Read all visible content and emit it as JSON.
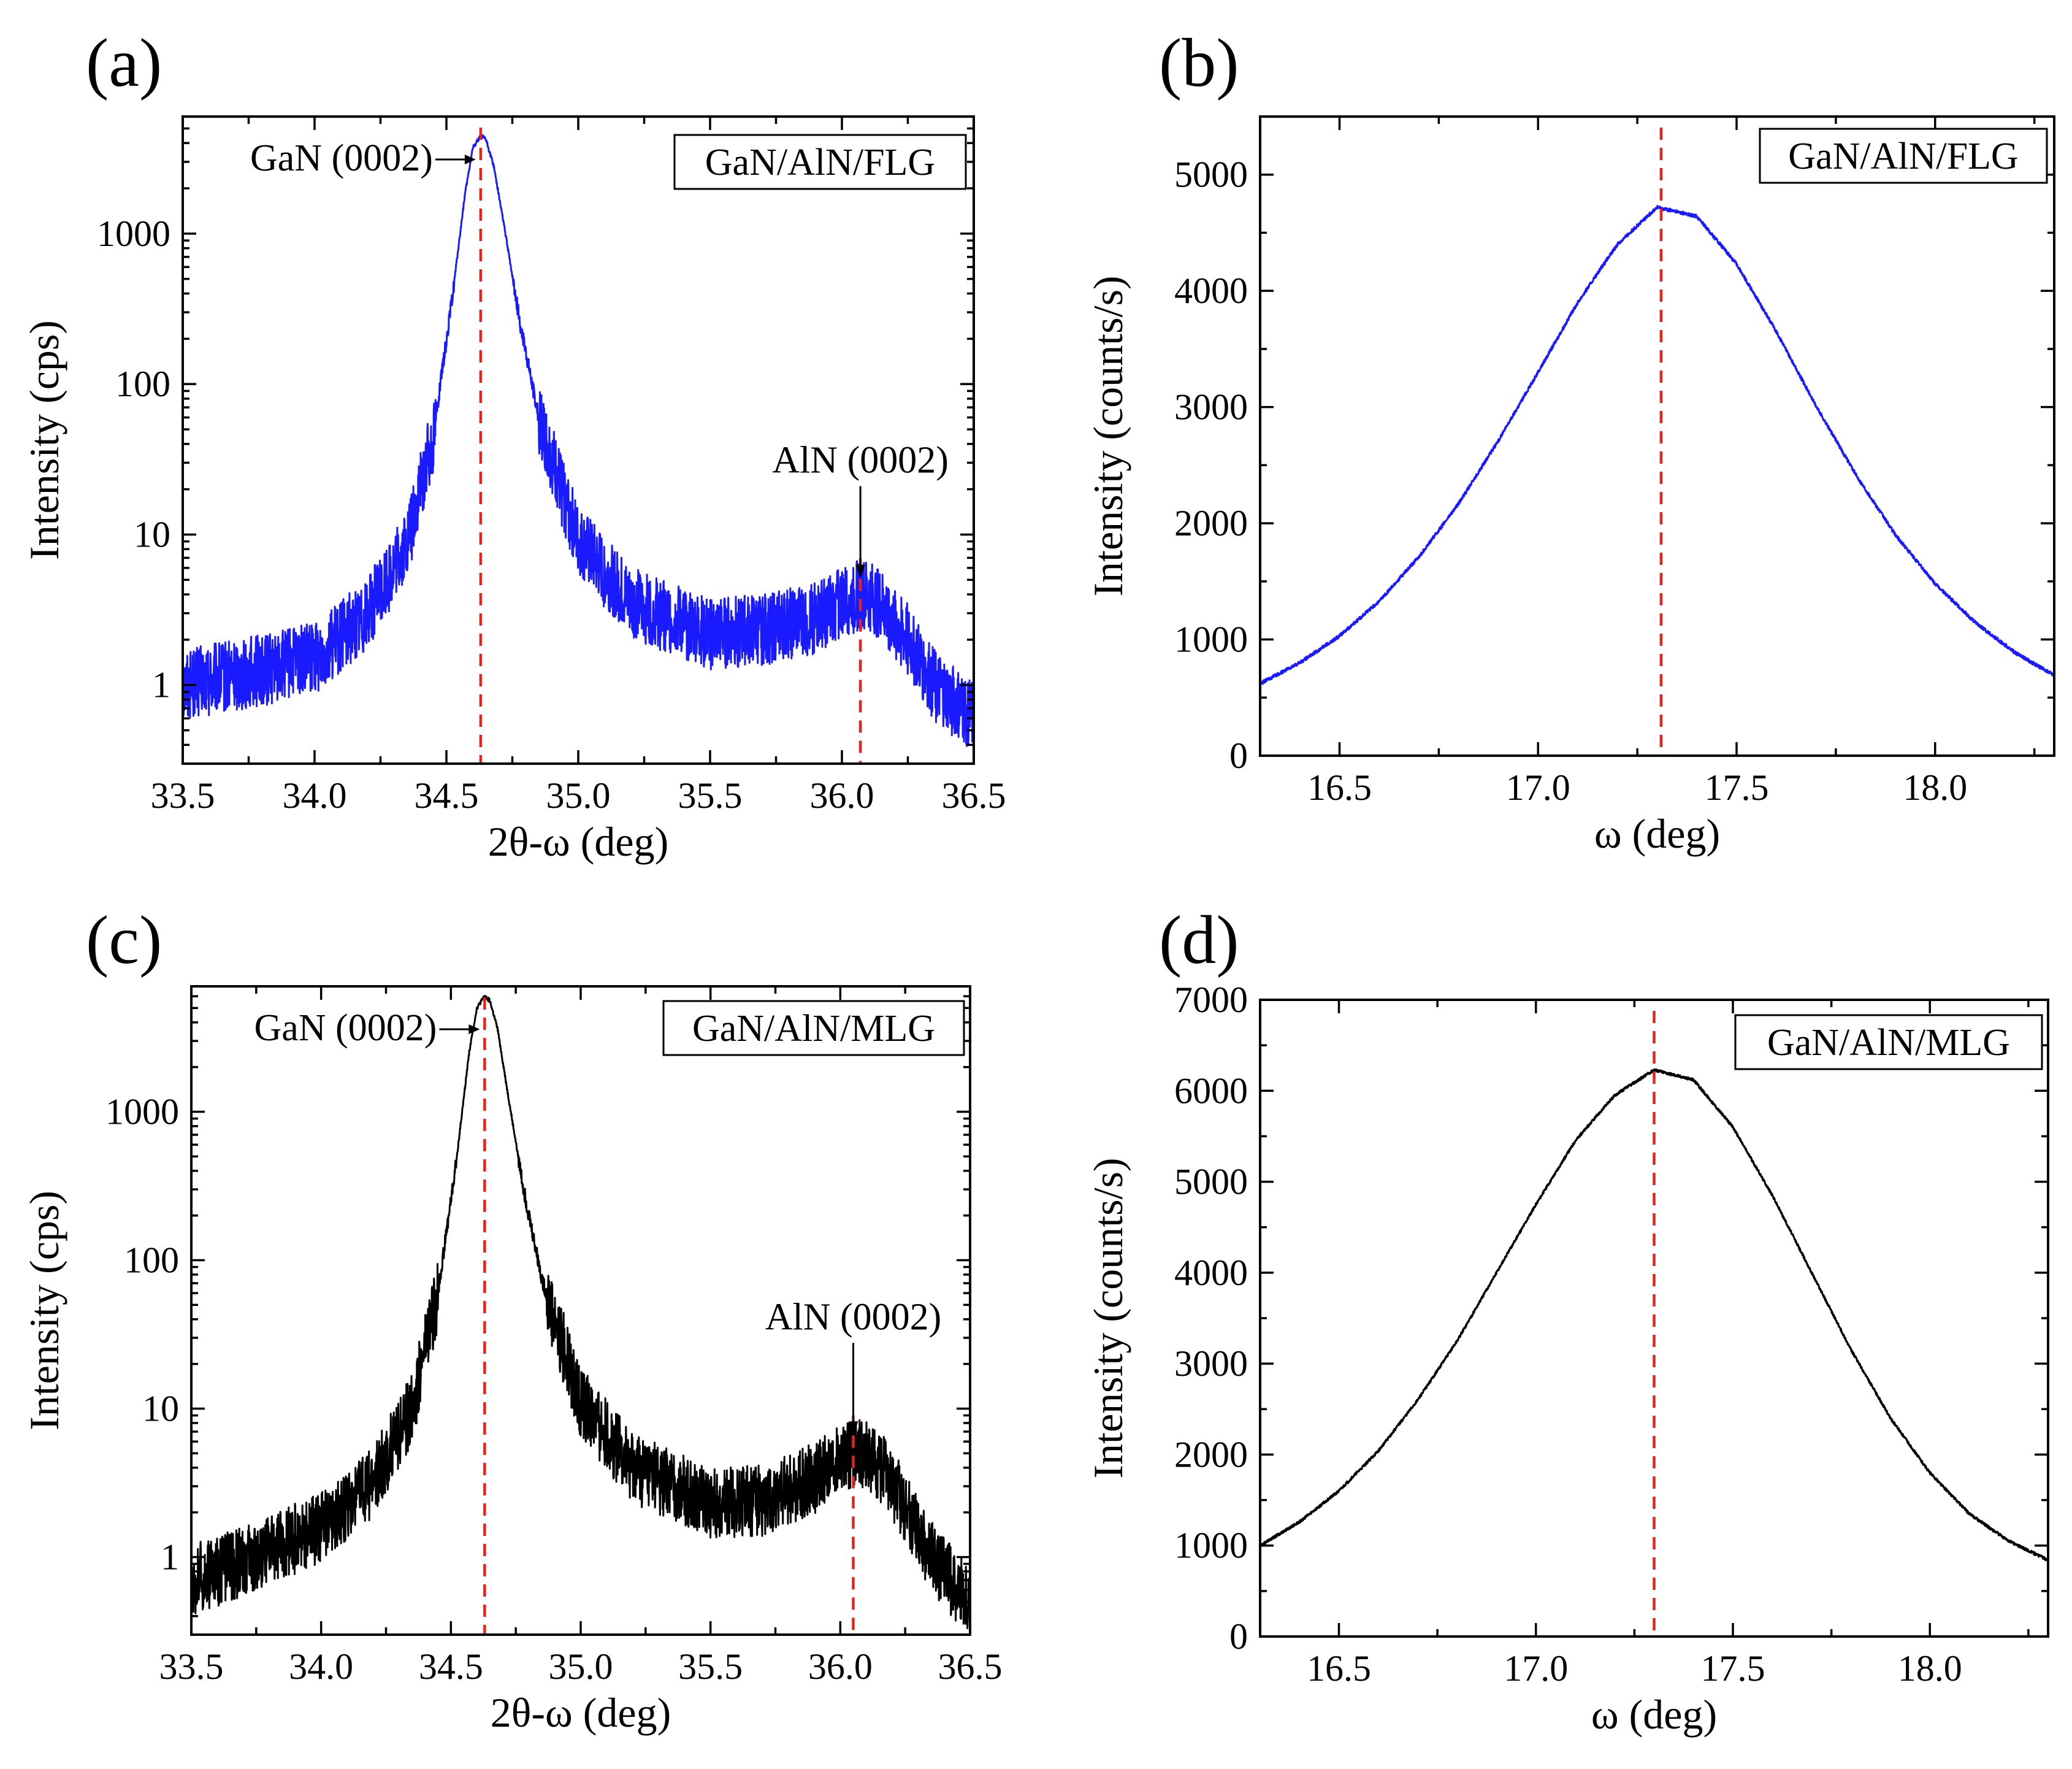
{
  "chart_data": [
    {
      "id": "a",
      "panel_label": "(a)",
      "type": "line",
      "legend": "GaN/AlN/FLG",
      "xlabel": "2θ-ω (deg)",
      "ylabel": "Intensity (cps)",
      "xlim": [
        33.5,
        36.5
      ],
      "ylim": [
        0.3,
        6000
      ],
      "yscale": "log",
      "xticks": [
        33.5,
        34.0,
        34.5,
        35.0,
        35.5,
        36.0,
        36.5
      ],
      "xtick_labels": [
        "33.5",
        "34.0",
        "34.5",
        "35.0",
        "35.5",
        "36.0",
        "36.5"
      ],
      "yticks": [
        1,
        10,
        100,
        1000
      ],
      "ytick_labels": [
        "1",
        "10",
        "100",
        "1000"
      ],
      "grid": false,
      "series": [
        {
          "color": "#1a1aff",
          "x": [
            33.5,
            33.75,
            34.0,
            34.2,
            34.35,
            34.45,
            34.52,
            34.57,
            34.6,
            34.63,
            34.65,
            34.68,
            34.72,
            34.78,
            34.85,
            35.0,
            35.2,
            35.5,
            35.7,
            35.9,
            36.0,
            36.08,
            36.15,
            36.25,
            36.35,
            36.5
          ],
          "y": [
            1.0,
            1.2,
            1.5,
            3.0,
            8.5,
            45,
            350,
            1800,
            3700,
            4500,
            4200,
            2800,
            1100,
            250,
            60,
            9,
            3.5,
            2.2,
            2.3,
            2.8,
            3.6,
            4.0,
            3.4,
            2.0,
            1.0,
            0.6
          ]
        }
      ],
      "markers": [
        {
          "x": 34.63,
          "label": "GaN (0002)",
          "arrow": "horizontal"
        },
        {
          "x": 36.07,
          "label": "AlN (0002)",
          "arrow": "down"
        }
      ]
    },
    {
      "id": "b",
      "panel_label": "(b)",
      "type": "line",
      "legend": "GaN/AlN/FLG",
      "xlabel": "ω (deg)",
      "ylabel": "Intensity (counts/s)",
      "xlim": [
        16.3,
        18.3
      ],
      "ylim": [
        0,
        5500
      ],
      "yscale": "linear",
      "xticks": [
        16.5,
        17.0,
        17.5,
        18.0
      ],
      "xtick_labels": [
        "16.5",
        "17.0",
        "17.5",
        "18.0"
      ],
      "yticks": [
        0,
        1000,
        2000,
        3000,
        4000,
        5000
      ],
      "ytick_labels": [
        "0",
        "1000",
        "2000",
        "3000",
        "4000",
        "5000"
      ],
      "grid": false,
      "series": [
        {
          "color": "#1a1aff",
          "x": [
            16.3,
            16.4,
            16.5,
            16.6,
            16.7,
            16.8,
            16.9,
            17.0,
            17.1,
            17.2,
            17.3,
            17.4,
            17.5,
            17.6,
            17.7,
            17.8,
            17.9,
            18.0,
            18.1,
            18.2,
            18.3
          ],
          "y": [
            620,
            800,
            1030,
            1330,
            1710,
            2170,
            2710,
            3300,
            3900,
            4400,
            4720,
            4640,
            4230,
            3650,
            3010,
            2420,
            1900,
            1480,
            1150,
            890,
            690
          ]
        }
      ],
      "markers": [
        {
          "x": 17.31
        }
      ]
    },
    {
      "id": "c",
      "panel_label": "(c)",
      "type": "line",
      "legend": "GaN/AlN/MLG",
      "xlabel": "2θ-ω (deg)",
      "ylabel": "Intensity (cps)",
      "xlim": [
        33.5,
        36.5
      ],
      "ylim": [
        0.3,
        7000
      ],
      "yscale": "log",
      "xticks": [
        33.5,
        34.0,
        34.5,
        35.0,
        35.5,
        36.0,
        36.5
      ],
      "xtick_labels": [
        "33.5",
        "34.0",
        "34.5",
        "35.0",
        "35.5",
        "36.0",
        "36.5"
      ],
      "yticks": [
        1,
        10,
        100,
        1000
      ],
      "ytick_labels": [
        "1",
        "10",
        "100",
        "1000"
      ],
      "grid": false,
      "series": [
        {
          "color": "#000000",
          "x": [
            33.5,
            33.75,
            34.0,
            34.2,
            34.35,
            34.45,
            34.52,
            34.57,
            34.6,
            34.63,
            34.65,
            34.68,
            34.72,
            34.78,
            34.85,
            35.0,
            35.2,
            35.5,
            35.7,
            35.9,
            36.0,
            36.06,
            36.15,
            36.25,
            36.35,
            36.5
          ],
          "y": [
            0.7,
            1.0,
            1.6,
            3.2,
            10,
            60,
            450,
            2500,
            5000,
            6000,
            5600,
            3600,
            1300,
            300,
            75,
            11,
            4.0,
            2.3,
            2.4,
            3.4,
            4.6,
            5.2,
            4.2,
            2.2,
            1.0,
            0.5
          ]
        }
      ],
      "markers": [
        {
          "x": 34.63,
          "label": "GaN (0002)",
          "arrow": "horizontal"
        },
        {
          "x": 36.05,
          "label": "AlN (0002)",
          "arrow": "down"
        }
      ]
    },
    {
      "id": "d",
      "panel_label": "(d)",
      "type": "line",
      "legend": "GaN/AlN/MLG",
      "xlabel": "ω (deg)",
      "ylabel": "Intensity (counts/s)",
      "xlim": [
        16.3,
        18.3
      ],
      "ylim": [
        0,
        7000
      ],
      "yscale": "linear",
      "xticks": [
        16.5,
        17.0,
        17.5,
        18.0
      ],
      "xtick_labels": [
        "16.5",
        "17.0",
        "17.5",
        "18.0"
      ],
      "yticks": [
        0,
        1000,
        2000,
        3000,
        4000,
        5000,
        6000,
        7000
      ],
      "ytick_labels": [
        "0",
        "1000",
        "2000",
        "3000",
        "4000",
        "5000",
        "6000",
        "7000"
      ],
      "grid": false,
      "series": [
        {
          "color": "#000000",
          "x": [
            16.3,
            16.4,
            16.5,
            16.6,
            16.7,
            16.8,
            16.9,
            17.0,
            17.1,
            17.2,
            17.3,
            17.4,
            17.5,
            17.6,
            17.7,
            17.8,
            17.9,
            18.0,
            18.1,
            18.2,
            18.3
          ],
          "y": [
            1000,
            1260,
            1600,
            2040,
            2600,
            3250,
            4000,
            4750,
            5450,
            5950,
            6230,
            6120,
            5600,
            4850,
            4000,
            3150,
            2400,
            1800,
            1350,
            1050,
            840
          ]
        }
      ],
      "markers": [
        {
          "x": 17.3
        }
      ]
    }
  ]
}
